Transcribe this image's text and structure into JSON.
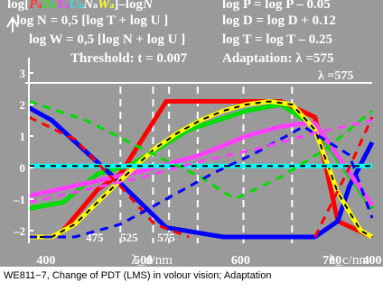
{
  "header": {
    "row1_left_prefix": "log[",
    "row1_left_vars": [
      {
        "v": "P",
        "s": "a",
        "color": "#ff3030"
      },
      {
        "v": "D",
        "s": "a",
        "color": "#30e030"
      },
      {
        "v": "T",
        "s": "a",
        "color": "#ff40ff"
      },
      {
        "v": "U",
        "s": "a",
        "color": "#30e0e0"
      },
      {
        "v": "N",
        "s": "a",
        "color": "#ffffff"
      },
      {
        "v": "W",
        "s": "a",
        "color": "#ffff30"
      }
    ],
    "row1_left_suffix": "]–log",
    "row1_left_tail_var": "N",
    "row1_right": "log P = log P – 0.05",
    "row2_left": "log N = 0,5 [log T + log U ]",
    "row2_right": "log D = log D + 0.12",
    "row3_left": "log W = 0,5 [log N + log U ]",
    "row3_right": "log T = log T – 0.25",
    "row4_left": "Threshold: t = 0.007",
    "row4_right": "Adaptation: λ =575",
    "row5_right": "λ =575"
  },
  "caption": "WE811−7, Change of PDT (LMS) in volour vision; Adaptation",
  "chart_data": {
    "type": "line",
    "x_axis_label_bottom": "λ_d/nm",
    "x_axis_label_right": "λ_c/nm",
    "x_ticks_bottom": [
      "400",
      "500",
      "600",
      "700",
      "400"
    ],
    "x_inner_labels": [
      "475",
      "525",
      "575"
    ],
    "y_ticks": [
      "3",
      "2",
      "1",
      "0",
      "–1",
      "–2"
    ],
    "ylim": [
      -2.4,
      3.6
    ],
    "grid": "dashed vertical lines",
    "series": [
      {
        "color": "#ff0000",
        "style": "solid",
        "x": [
          0,
          4,
          6,
          12,
          16,
          24,
          28,
          38,
          44,
          50,
          54,
          60
        ],
        "y": [
          -2.2,
          -2.2,
          -2.0,
          -0.7,
          -0.2,
          2.1,
          2.1,
          2.1,
          2.1,
          1.6,
          -1.7,
          -2.2
        ]
      },
      {
        "color": "#00dd00",
        "style": "solid",
        "x": [
          0,
          6,
          12,
          18,
          28,
          38,
          44,
          50,
          60
        ],
        "y": [
          -1.3,
          -1.1,
          -0.2,
          0.1,
          1.2,
          1.8,
          2.0,
          1.3,
          -1.3
        ]
      },
      {
        "color": "#0000ff",
        "style": "solid",
        "x": [
          0,
          4,
          10,
          16,
          24,
          34,
          44,
          50,
          54,
          56,
          60
        ],
        "y": [
          1.9,
          1.5,
          0.5,
          -0.5,
          -1.9,
          -2.2,
          -2.2,
          -2.2,
          -1.7,
          -0.6,
          0.8
        ]
      },
      {
        "color": "#ff40ff",
        "style": "solid",
        "x": [
          0,
          10,
          20,
          30,
          38,
          44,
          48,
          50,
          60
        ],
        "y": [
          -0.9,
          -0.5,
          -0.1,
          0.4,
          1.0,
          1.3,
          1.4,
          1.4,
          -1.2
        ]
      },
      {
        "color": "#ffff00",
        "style": "dashed-black",
        "x": [
          0,
          4,
          8,
          12,
          16,
          22,
          26,
          30,
          34,
          38,
          42,
          46,
          50,
          54,
          58,
          60
        ],
        "y": [
          -2.2,
          -2.2,
          -1.8,
          -1.1,
          -0.4,
          0.6,
          1.1,
          1.5,
          1.8,
          2.0,
          2.1,
          2.0,
          1.2,
          -0.8,
          -2.0,
          -2.2
        ]
      },
      {
        "color": "#00ffff",
        "style": "dashed-black",
        "x": [
          0,
          60
        ],
        "y": [
          0.05,
          0.05
        ]
      },
      {
        "color": "#ff0000",
        "style": "dashed",
        "x": [
          0,
          8,
          16,
          22,
          28
        ],
        "y": [
          1.6,
          0.9,
          -0.6,
          -1.8,
          -2.2
        ]
      },
      {
        "color": "#ff0000",
        "style": "dashed",
        "x": [
          50,
          56,
          60
        ],
        "y": [
          -2.2,
          0.0,
          1.6
        ]
      },
      {
        "color": "#00dd00",
        "style": "dashed",
        "x": [
          0,
          10,
          22,
          30,
          36,
          44,
          52,
          60
        ],
        "y": [
          2.1,
          1.5,
          0.4,
          -0.3,
          -1.0,
          -0.3,
          0.6,
          1.8
        ]
      },
      {
        "color": "#0000ff",
        "style": "dashed",
        "x": [
          0,
          8,
          16,
          24,
          32,
          40,
          48,
          56,
          60
        ],
        "y": [
          -2.2,
          -2.2,
          -1.8,
          -1.0,
          -0.2,
          0.5,
          1.3,
          0.4,
          -1.6
        ]
      },
      {
        "color": "#ff40ff",
        "style": "dashed",
        "x": [
          0,
          10,
          20,
          30,
          40,
          50,
          60
        ],
        "y": [
          -1.1,
          -0.7,
          -0.3,
          0.2,
          0.6,
          1.1,
          1.5
        ]
      }
    ]
  }
}
